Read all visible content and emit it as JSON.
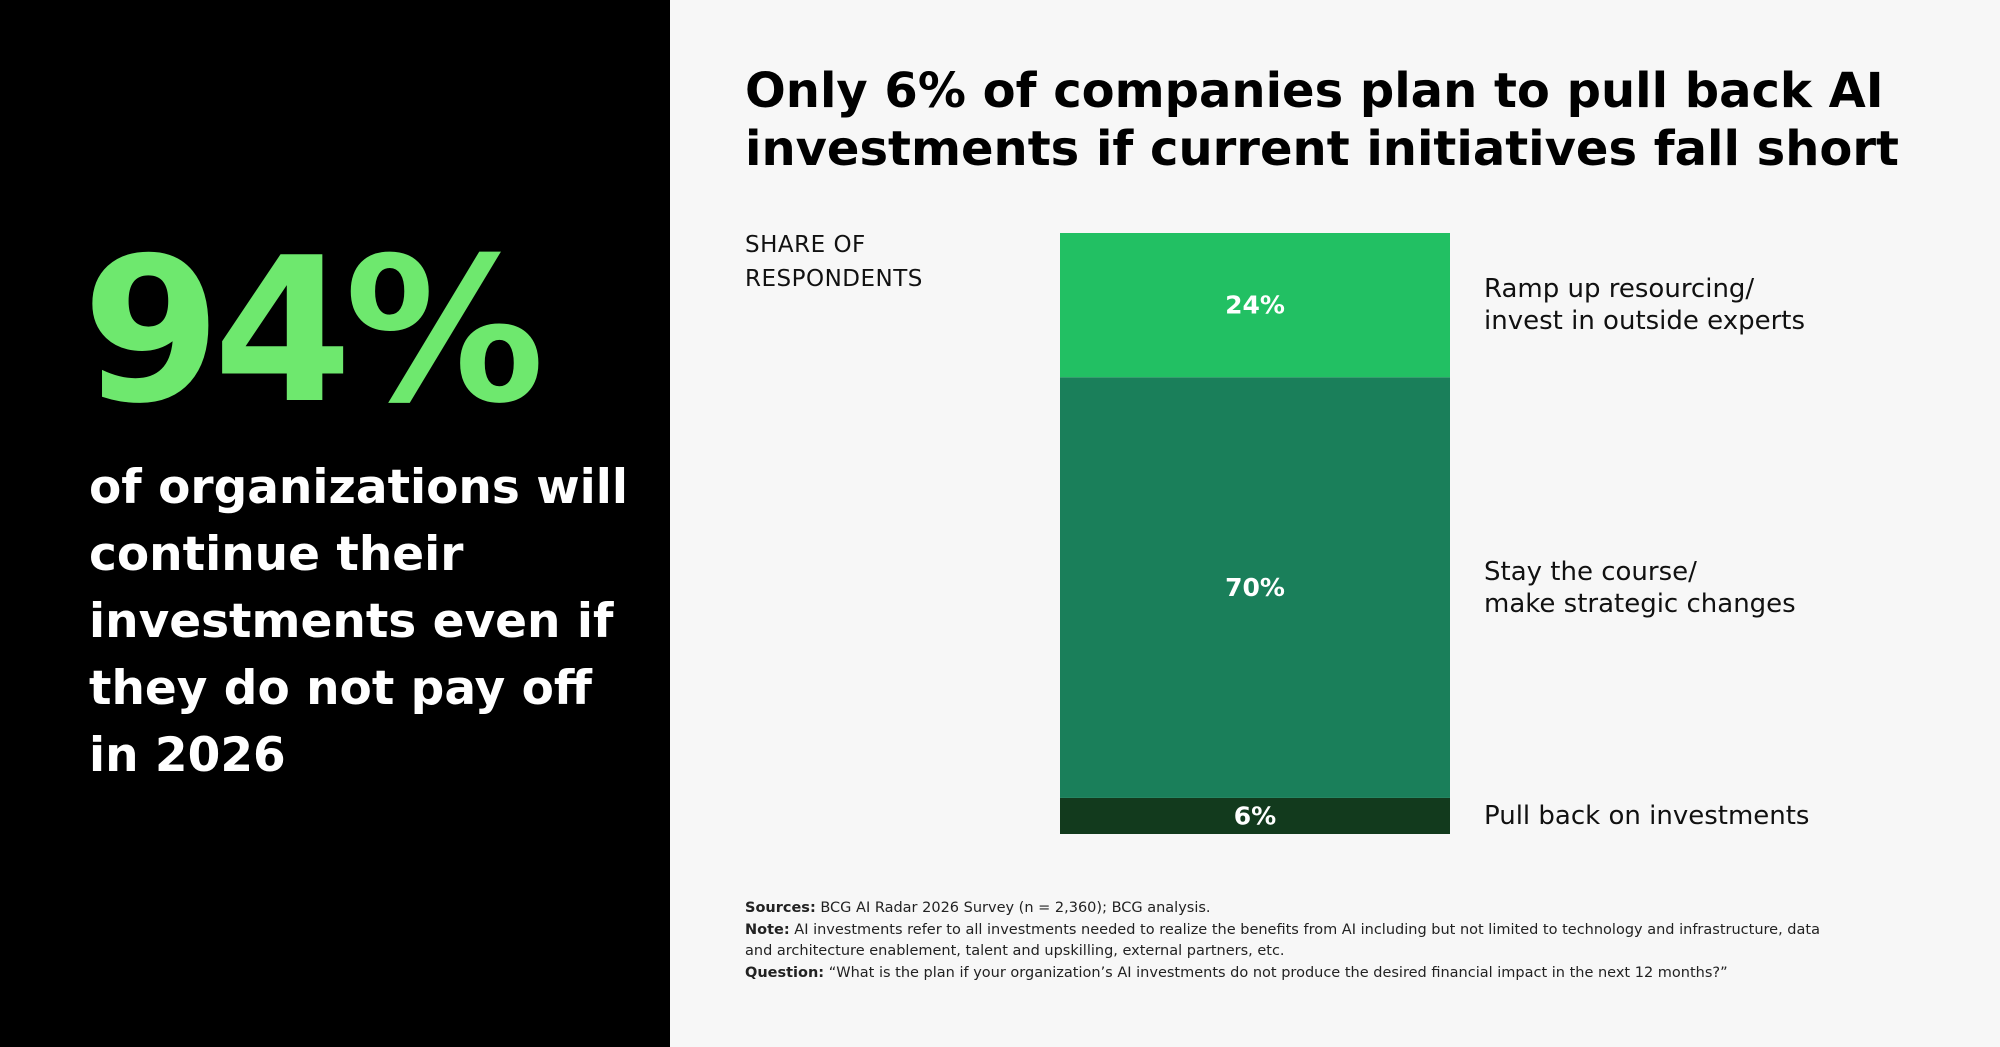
{
  "highlight": {
    "stat": "94%",
    "text": "of organizations will continue their investments even if they do not pay off in 2026",
    "stat_color": "#6ee86e"
  },
  "chart_data": {
    "type": "bar",
    "stacked": true,
    "title": "Only 6% of companies plan to pull back AI investments if current initiatives fall short",
    "ylabel": "SHARE OF\nRESPONDENTS",
    "categories": [
      ""
    ],
    "series": [
      {
        "name": "Pull back on investments",
        "values": [
          6
        ],
        "label": "6%",
        "color": "#123a1d"
      },
      {
        "name": "Stay the course/\nmake strategic changes",
        "values": [
          70
        ],
        "label": "70%",
        "color": "#1a7f5a"
      },
      {
        "name": "Ramp up resourcing/\ninvest in outside experts",
        "values": [
          24
        ],
        "label": "24%",
        "color": "#22c063"
      }
    ],
    "ylim": [
      0,
      100
    ],
    "legend": "right",
    "grid": false
  },
  "footnotes": {
    "sources_label": "Sources:",
    "sources_text": " BCG AI Radar 2026 Survey (n = 2,360); BCG analysis.",
    "note_label": "Note:",
    "note_text": " AI investments refer to all investments needed to realize the benefits from AI including but not limited to technology and infrastructure, data and architecture enablement, talent and upskilling, external partners, etc.",
    "question_label": "Question:",
    "question_text": " “What is the plan if your organization’s AI investments do not produce the desired financial impact in the next 12 months?”"
  }
}
